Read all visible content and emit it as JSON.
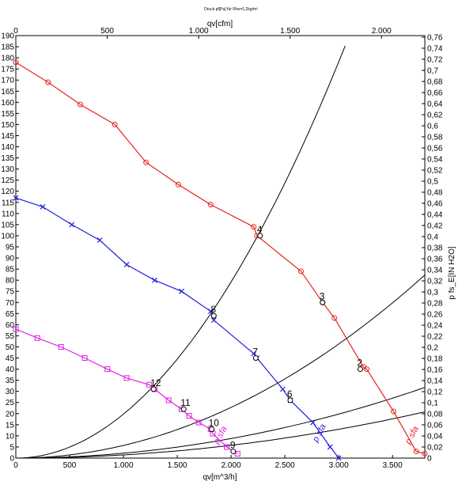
{
  "chart_data": {
    "type": "line",
    "title": "Druck pf[Pa] für Rho=1,2kg/m³",
    "xlabel": "qv[m^3/h]",
    "x2label": "qv[cfm]",
    "ylabel": "",
    "y2label": "p fs_E[IN H2O]",
    "xlim": [
      0,
      3800
    ],
    "ylim": [
      0,
      190
    ],
    "x2lim": [
      0,
      2237
    ],
    "y2lim": [
      0,
      0.7628
    ],
    "grid": false,
    "x_ticks": [
      0,
      500,
      1000,
      1500,
      2000,
      2500,
      3000,
      3500
    ],
    "x_tick_labels": [
      "0",
      "500",
      "1.000",
      "1.500",
      "2.000",
      "2.500",
      "3.000",
      "3.500"
    ],
    "x2_ticks": [
      0,
      500,
      1000,
      1500,
      2000
    ],
    "x2_tick_labels": [
      "0",
      "500",
      "1.000",
      "1.500",
      "2.000"
    ],
    "y_ticks": [
      0,
      5,
      10,
      15,
      20,
      25,
      30,
      35,
      40,
      45,
      50,
      55,
      60,
      65,
      70,
      75,
      80,
      85,
      90,
      95,
      100,
      105,
      110,
      115,
      120,
      125,
      130,
      135,
      140,
      145,
      150,
      155,
      160,
      165,
      170,
      175,
      180,
      185,
      190
    ],
    "y2_ticks": [
      0,
      0.02,
      0.04,
      0.06,
      0.08,
      0.1,
      0.12,
      0.14,
      0.16,
      0.18,
      0.2,
      0.22,
      0.24,
      0.26,
      0.28,
      0.3,
      0.32,
      0.34,
      0.36,
      0.38,
      0.4,
      0.42,
      0.44,
      0.46,
      0.48,
      0.5,
      0.52,
      0.54,
      0.56,
      0.58,
      0.6,
      0.62,
      0.64,
      0.66,
      0.68,
      0.7,
      0.72,
      0.74,
      0.76
    ],
    "y2_tick_labels": [
      "0",
      "0,02",
      "0,04",
      "0,06",
      "0,08",
      "0,1",
      "0,12",
      "0,14",
      "0,16",
      "0,18",
      "0,2",
      "0,22",
      "0,24",
      "0,26",
      "0,28",
      "0,3",
      "0,32",
      "0,34",
      "0,36",
      "0,38",
      "0,4",
      "0,42",
      "0,44",
      "0,46",
      "0,48",
      "0,5",
      "0,52",
      "0,54",
      "0,56",
      "0,58",
      "0,6",
      "0,62",
      "0,64",
      "0,66",
      "0,68",
      "0,7",
      "0,72",
      "0,74",
      "0,76"
    ],
    "series": [
      {
        "label": "p_sf",
        "color": "#e8231f",
        "marker": "circle",
        "points": [
          [
            0,
            178
          ],
          [
            300,
            169
          ],
          [
            600,
            159
          ],
          [
            920,
            150
          ],
          [
            1210,
            133
          ],
          [
            1510,
            123
          ],
          [
            1810,
            114
          ],
          [
            2210,
            104
          ],
          [
            2240,
            100
          ],
          [
            2650,
            84
          ],
          [
            2850,
            70
          ],
          [
            2960,
            63
          ],
          [
            3230,
            41
          ],
          [
            3260,
            40
          ],
          [
            3510,
            21
          ],
          [
            3720,
            3
          ],
          [
            3800,
            2
          ]
        ]
      },
      {
        "label": "p_sf",
        "color": "#1f1fe0",
        "marker": "x",
        "points": [
          [
            0,
            117
          ],
          [
            250,
            113
          ],
          [
            520,
            105
          ],
          [
            780,
            98
          ],
          [
            1030,
            87
          ],
          [
            1290,
            80
          ],
          [
            1540,
            75
          ],
          [
            1810,
            66
          ],
          [
            1840,
            62
          ],
          [
            2210,
            47
          ],
          [
            2240,
            45
          ],
          [
            2480,
            31
          ],
          [
            2550,
            26
          ],
          [
            2760,
            16
          ],
          [
            2920,
            5
          ],
          [
            3000,
            0
          ]
        ]
      },
      {
        "label": "p_sf",
        "color": "#e020e0",
        "marker": "square",
        "points": [
          [
            0,
            58
          ],
          [
            200,
            54
          ],
          [
            420,
            50
          ],
          [
            640,
            45
          ],
          [
            850,
            40
          ],
          [
            1030,
            36
          ],
          [
            1240,
            33
          ],
          [
            1290,
            31
          ],
          [
            1420,
            26
          ],
          [
            1540,
            22
          ],
          [
            1610,
            19
          ],
          [
            1700,
            16
          ],
          [
            1810,
            13
          ],
          [
            1830,
            11
          ],
          [
            1960,
            5
          ],
          [
            2060,
            2
          ]
        ]
      }
    ],
    "system_curves": [
      {
        "k": 1.98e-05,
        "x_max": 3060
      },
      {
        "k": 5.7e-06,
        "x_max": 3800
      },
      {
        "k": 2.2e-06,
        "x_max": 3800
      },
      {
        "k": 1.44e-06,
        "x_max": 3800
      }
    ],
    "operating_points": [
      {
        "label": "2",
        "x": 3200,
        "y": 40
      },
      {
        "label": "3",
        "x": 2850,
        "y": 70
      },
      {
        "label": "4",
        "x": 2270,
        "y": 100
      },
      {
        "label": "6",
        "x": 2550,
        "y": 26
      },
      {
        "label": "7",
        "x": 2230,
        "y": 45
      },
      {
        "label": "8",
        "x": 1840,
        "y": 64
      },
      {
        "label": "9",
        "x": 2020,
        "y": 3
      },
      {
        "label": "10",
        "x": 1820,
        "y": 13
      },
      {
        "label": "11",
        "x": 1560,
        "y": 22
      },
      {
        "label": "12",
        "x": 1280,
        "y": 31
      }
    ],
    "curve_labels": [
      {
        "text": "p sfa",
        "color": "#e8231f",
        "x": 3660,
        "y": 6
      },
      {
        "text": "p sfa",
        "color": "#1f1fe0",
        "x": 2800,
        "y": 7
      },
      {
        "text": "p sfa",
        "color": "#e020e0",
        "x": 1880,
        "y": 6
      }
    ]
  }
}
